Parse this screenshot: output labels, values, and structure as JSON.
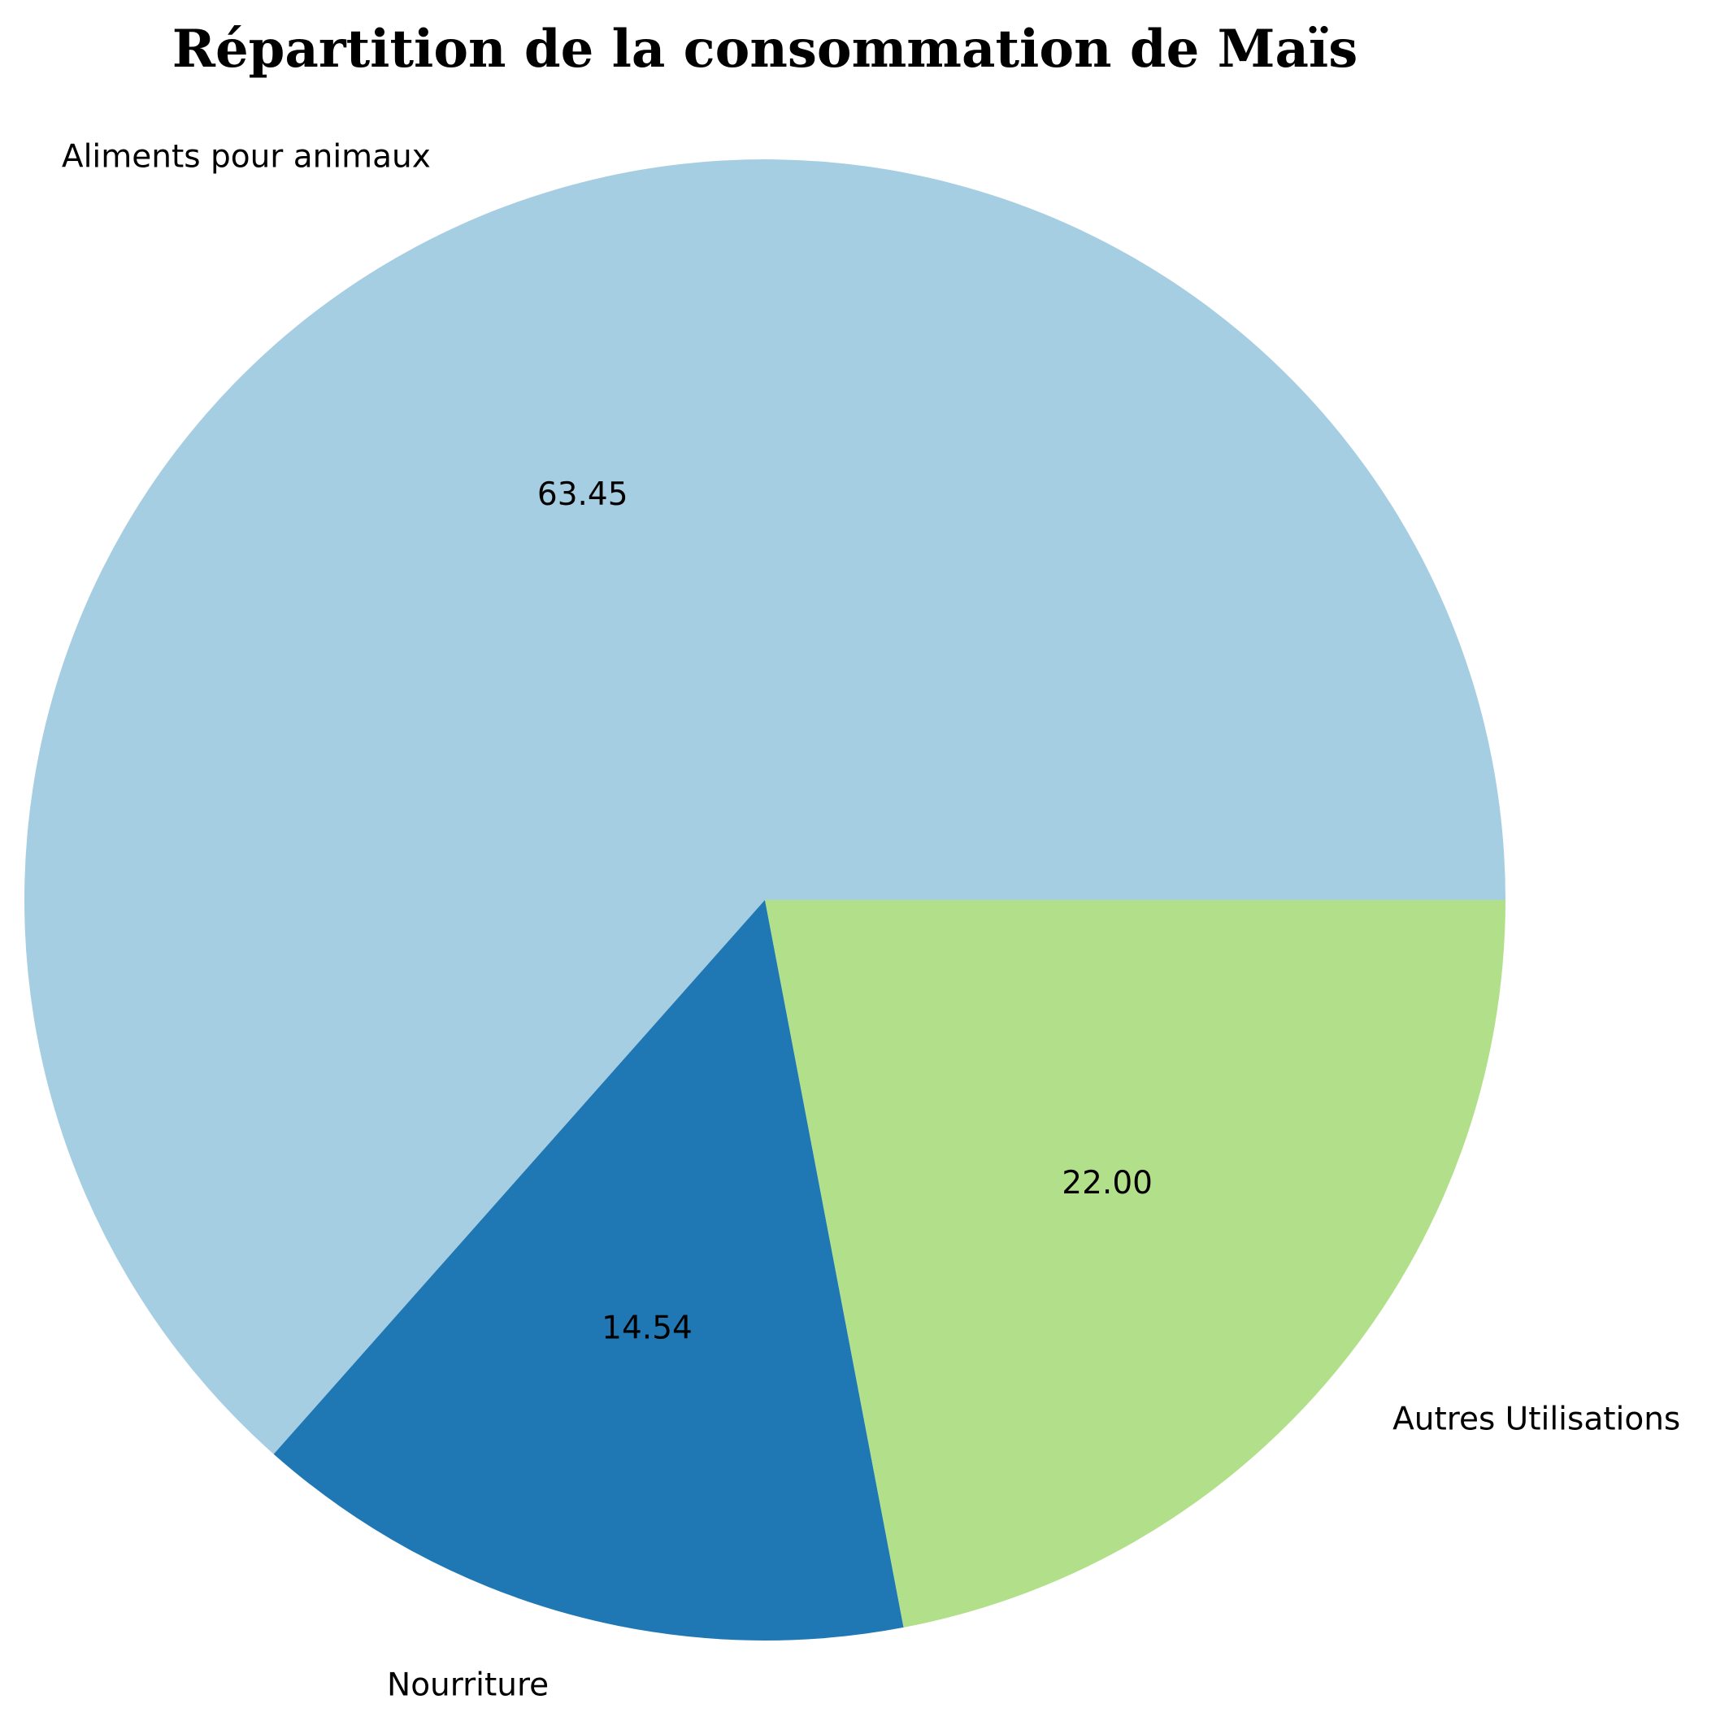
{
  "chart_data": {
    "type": "pie",
    "title": "Répartition de la consommation de Maïs",
    "slices": [
      {
        "label": "Aliments pour animaux",
        "value": 63.45,
        "display": "63.45",
        "color": "#a6cee3"
      },
      {
        "label": "Nourriture",
        "value": 14.54,
        "display": "14.54",
        "color": "#1f78b4"
      },
      {
        "label": "Autres Utilisations",
        "value": 22.0,
        "display": "22.00",
        "color": "#b2df8a"
      }
    ],
    "start_angle_deg": 0,
    "direction": "counterclockwise",
    "legend": "none"
  }
}
